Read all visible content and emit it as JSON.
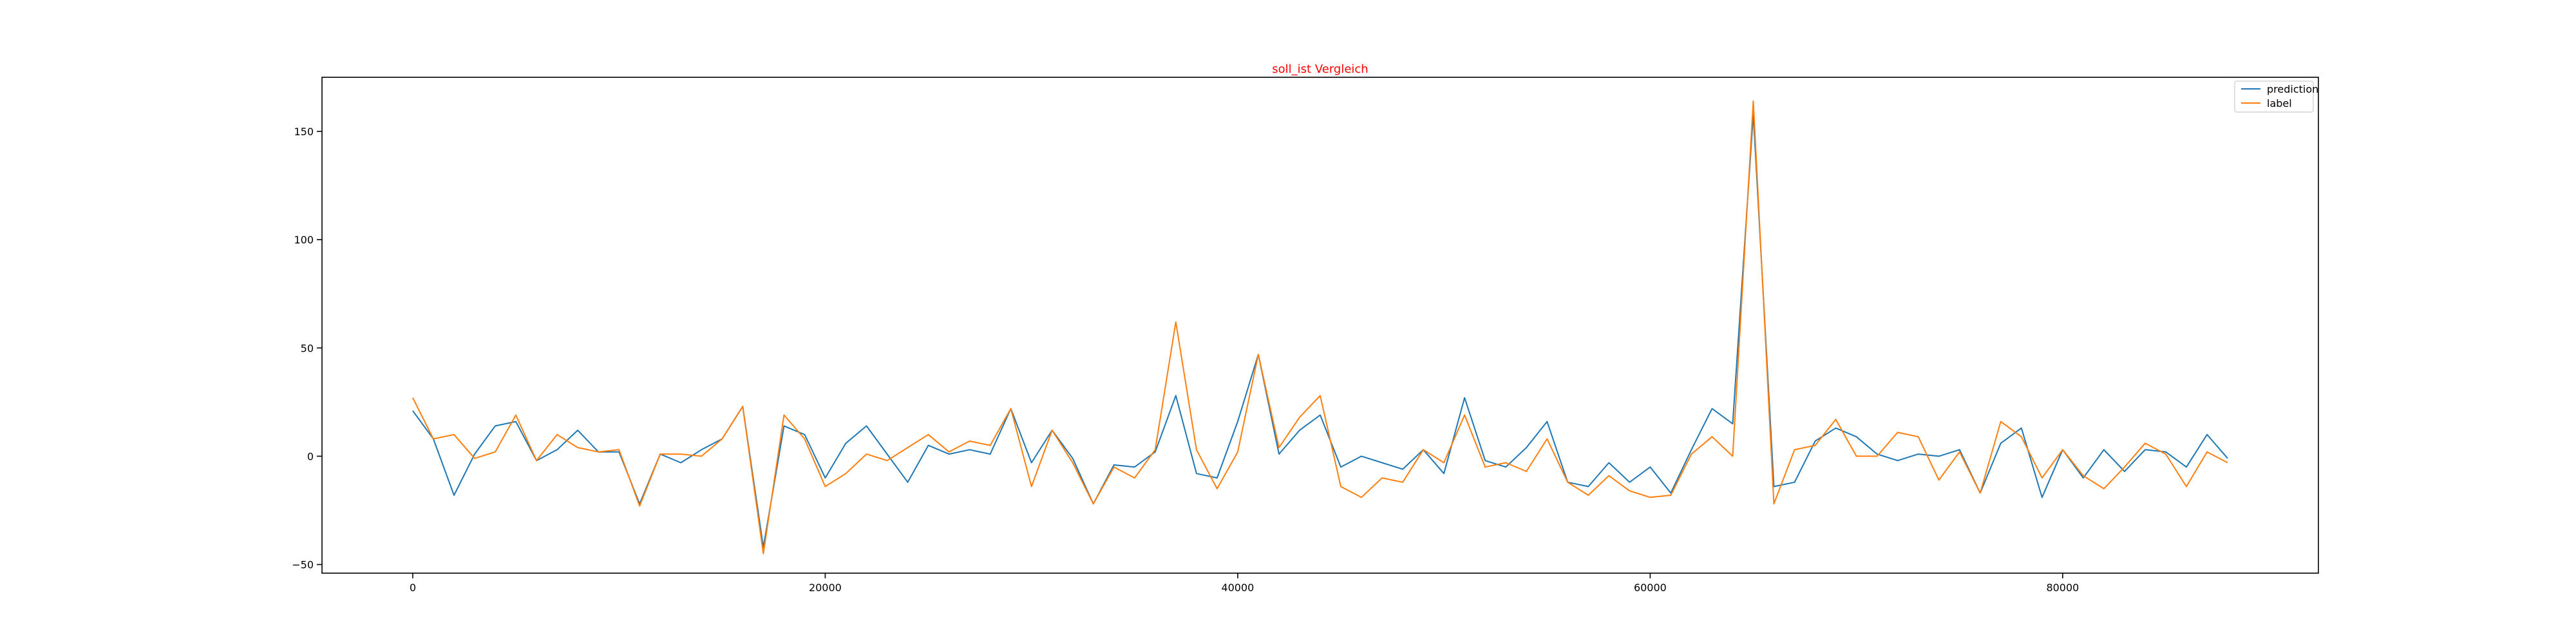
{
  "chart_data": {
    "type": "line",
    "title": "soll_ist Vergleich",
    "title_color": "#ff0000",
    "xlabel": "",
    "ylabel": "",
    "xlim": [
      -4400,
      92400
    ],
    "ylim": [
      -54,
      175
    ],
    "xticks": [
      0,
      20000,
      40000,
      60000,
      80000
    ],
    "yticks": [
      -50,
      0,
      50,
      100,
      150
    ],
    "grid": false,
    "legend_position": "top-right",
    "x": [
      0,
      1000,
      2000,
      3000,
      4000,
      5000,
      6000,
      7000,
      8000,
      9000,
      10000,
      11000,
      12000,
      13000,
      14000,
      15000,
      16000,
      17000,
      18000,
      19000,
      20000,
      21000,
      22000,
      23000,
      24000,
      25000,
      26000,
      27000,
      28000,
      29000,
      30000,
      31000,
      32000,
      33000,
      34000,
      35000,
      36000,
      37000,
      38000,
      39000,
      40000,
      41000,
      42000,
      43000,
      44000,
      45000,
      46000,
      47000,
      48000,
      49000,
      50000,
      51000,
      52000,
      53000,
      54000,
      55000,
      56000,
      57000,
      58000,
      59000,
      60000,
      61000,
      62000,
      63000,
      64000,
      65000,
      66000,
      67000,
      68000,
      69000,
      70000,
      71000,
      72000,
      73000,
      74000,
      75000,
      76000,
      77000,
      78000,
      79000,
      80000,
      81000,
      82000,
      83000,
      84000,
      85000,
      86000,
      87000,
      88000
    ],
    "series": [
      {
        "name": "prediction",
        "color": "#1f77b4",
        "values": [
          21,
          8,
          -18,
          1,
          14,
          16,
          -2,
          3,
          12,
          2,
          2,
          -22,
          1,
          -3,
          3,
          8,
          23,
          -42,
          14,
          10,
          -10,
          6,
          14,
          1,
          -12,
          5,
          1,
          3,
          1,
          22,
          -3,
          12,
          -1,
          -22,
          -4,
          -5,
          2,
          28,
          -8,
          -10,
          16,
          47,
          1,
          12,
          19,
          -5,
          0,
          -3,
          -6,
          3,
          -8,
          27,
          -2,
          -5,
          4,
          16,
          -12,
          -14,
          -3,
          -12,
          -5,
          -17,
          3,
          22,
          15,
          158,
          -14,
          -12,
          7,
          13,
          9,
          1,
          -2,
          1,
          0,
          3,
          -17,
          6,
          13,
          -19,
          3,
          -10,
          3,
          -7,
          3,
          2,
          -5,
          10,
          -1
        ]
      },
      {
        "name": "label",
        "color": "#ff7f0e",
        "values": [
          27,
          8,
          10,
          -1,
          2,
          19,
          -2,
          10,
          4,
          2,
          3,
          -23,
          1,
          1,
          0,
          8,
          23,
          -45,
          19,
          8,
          -14,
          -8,
          1,
          -2,
          4,
          10,
          2,
          7,
          5,
          22,
          -14,
          12,
          -3,
          -22,
          -5,
          -10,
          3,
          62,
          3,
          -15,
          2,
          47,
          4,
          18,
          28,
          -14,
          -19,
          -10,
          -12,
          3,
          -3,
          19,
          -5,
          -3,
          -7,
          8,
          -12,
          -18,
          -9,
          -16,
          -19,
          -18,
          1,
          9,
          0,
          164,
          -22,
          3,
          5,
          17,
          0,
          0,
          11,
          9,
          -11,
          2,
          -17,
          16,
          9,
          -10,
          3,
          -9,
          -15,
          -5,
          6,
          1,
          -14,
          2,
          -3
        ]
      }
    ]
  }
}
